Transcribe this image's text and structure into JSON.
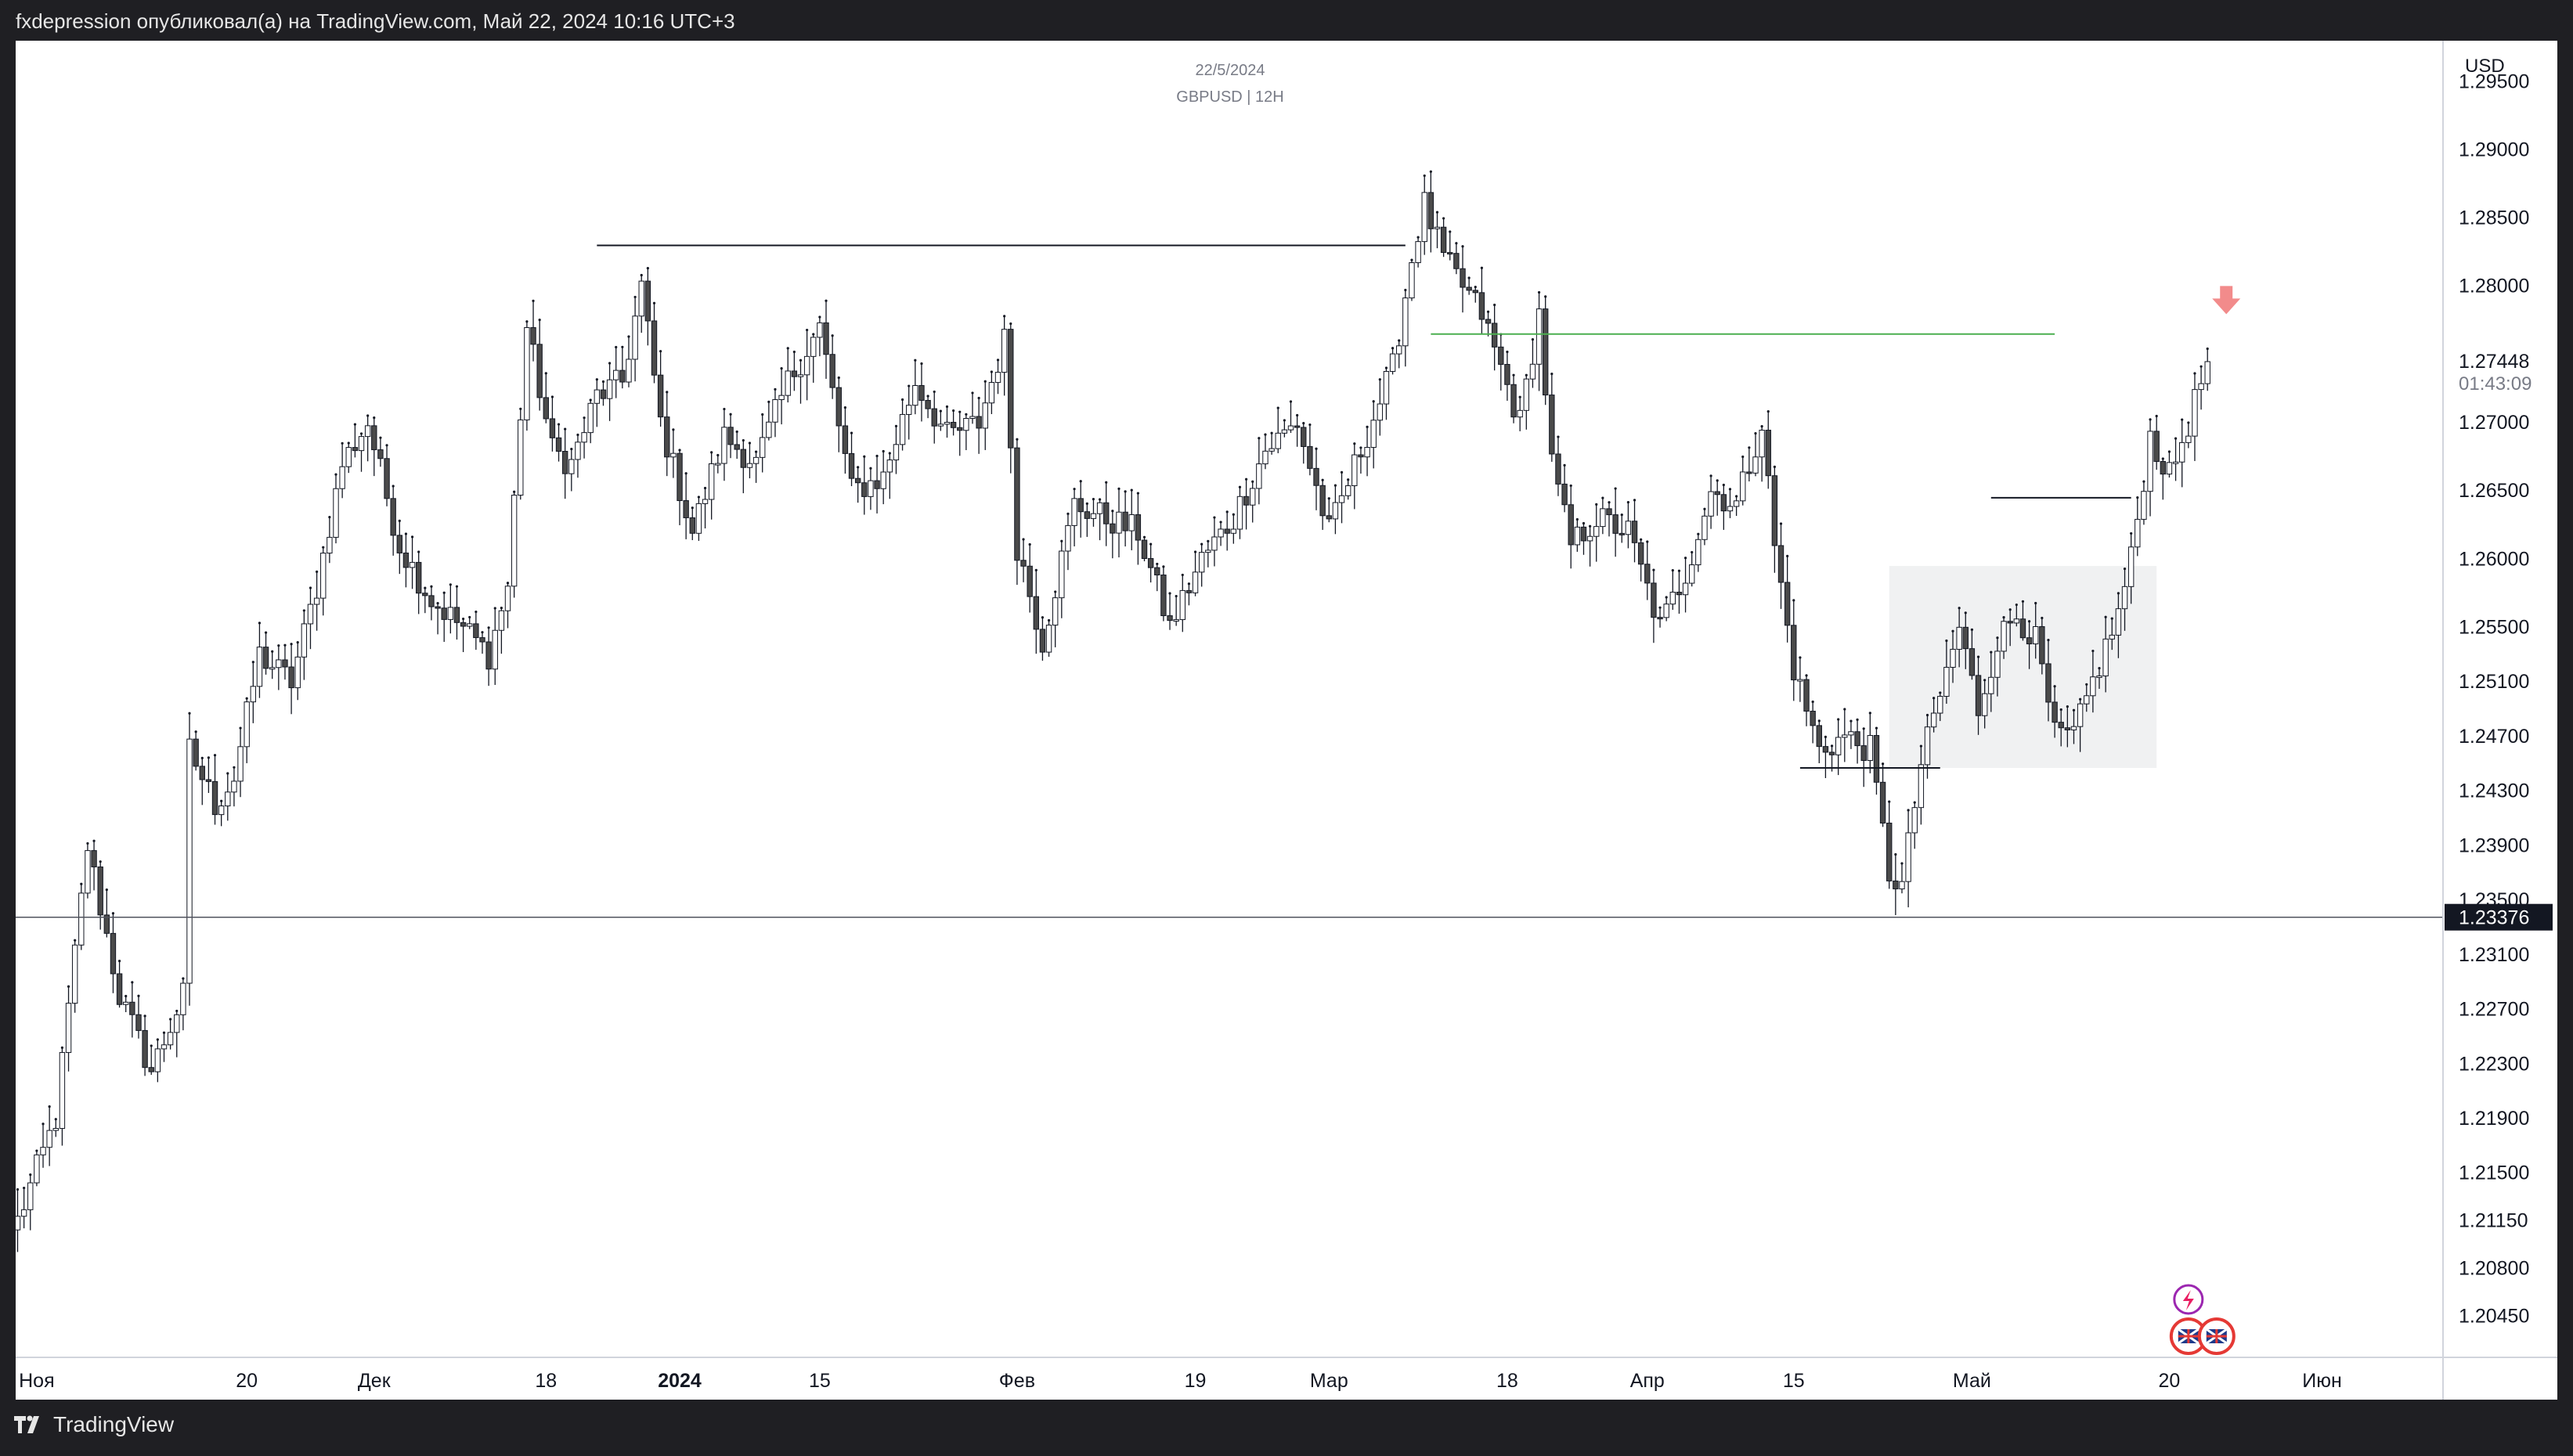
{
  "header": {
    "title": "fxdepression опубликовал(а) на TradingView.com, Май 22, 2024 10:16 UTC+3"
  },
  "footer": {
    "brand": "TradingView",
    "logo_icon": "tradingview-logo-icon"
  },
  "chart_data": {
    "type": "candlestick",
    "symbol": "GBPUSD | 12H",
    "date_label": "22/5/2024",
    "currency": "USD",
    "current_price": "1.27448",
    "countdown": "01:43:09",
    "crosshair_price": "1.23376",
    "ylim": [
      1.2015,
      1.298
    ],
    "y_ticks": [
      "1.29500",
      "1.29000",
      "1.28500",
      "1.28000",
      "1.27000",
      "1.26500",
      "1.26000",
      "1.25500",
      "1.25100",
      "1.24700",
      "1.24300",
      "1.23900",
      "1.23500",
      "1.23100",
      "1.22700",
      "1.22300",
      "1.21900",
      "1.21500",
      "1.21150",
      "1.20800",
      "1.20450"
    ],
    "x_ticks": [
      {
        "label": "Ноя",
        "i": 3,
        "bold": false
      },
      {
        "label": "20",
        "i": 36,
        "bold": false
      },
      {
        "label": "Дек",
        "i": 56,
        "bold": false
      },
      {
        "label": "18",
        "i": 83,
        "bold": false
      },
      {
        "label": "2024",
        "i": 104,
        "bold": true
      },
      {
        "label": "15",
        "i": 126,
        "bold": false
      },
      {
        "label": "Фев",
        "i": 157,
        "bold": false
      },
      {
        "label": "19",
        "i": 185,
        "bold": false
      },
      {
        "label": "Мар",
        "i": 206,
        "bold": false
      },
      {
        "label": "18",
        "i": 234,
        "bold": false
      },
      {
        "label": "Апр",
        "i": 256,
        "bold": false
      },
      {
        "label": "15",
        "i": 279,
        "bold": false
      },
      {
        "label": "Май",
        "i": 307,
        "bold": false
      },
      {
        "label": "20",
        "i": 338,
        "bold": false
      },
      {
        "label": "Июн",
        "i": 362,
        "bold": false
      }
    ],
    "anchors": [
      [
        0,
        1.2115
      ],
      [
        6,
        1.219
      ],
      [
        11,
        1.239
      ],
      [
        16,
        1.228
      ],
      [
        21,
        1.2225
      ],
      [
        26,
        1.228
      ],
      [
        27,
        1.246
      ],
      [
        31,
        1.242
      ],
      [
        34,
        1.244
      ],
      [
        38,
        1.253
      ],
      [
        43,
        1.251
      ],
      [
        47,
        1.258
      ],
      [
        51,
        1.267
      ],
      [
        55,
        1.27
      ],
      [
        60,
        1.261
      ],
      [
        65,
        1.257
      ],
      [
        70,
        1.255
      ],
      [
        74,
        1.253
      ],
      [
        77,
        1.258
      ],
      [
        80,
        1.277
      ],
      [
        84,
        1.268
      ],
      [
        87,
        1.267
      ],
      [
        91,
        1.272
      ],
      [
        95,
        1.273
      ],
      [
        98,
        1.28
      ],
      [
        101,
        1.27
      ],
      [
        106,
        1.262
      ],
      [
        111,
        1.269
      ],
      [
        116,
        1.267
      ],
      [
        121,
        1.273
      ],
      [
        126,
        1.277
      ],
      [
        131,
        1.265
      ],
      [
        136,
        1.266
      ],
      [
        141,
        1.273
      ],
      [
        146,
        1.269
      ],
      [
        151,
        1.27
      ],
      [
        155,
        1.276
      ],
      [
        157,
        1.261
      ],
      [
        161,
        1.254
      ],
      [
        166,
        1.264
      ],
      [
        171,
        1.263
      ],
      [
        176,
        1.262
      ],
      [
        181,
        1.255
      ],
      [
        186,
        1.26
      ],
      [
        191,
        1.263
      ],
      [
        196,
        1.268
      ],
      [
        201,
        1.27
      ],
      [
        206,
        1.262
      ],
      [
        211,
        1.268
      ],
      [
        216,
        1.274
      ],
      [
        219,
        1.282
      ],
      [
        221,
        1.286
      ],
      [
        224,
        1.282
      ],
      [
        227,
        1.28
      ],
      [
        230,
        1.278
      ],
      [
        233,
        1.274
      ],
      [
        236,
        1.27
      ],
      [
        239,
        1.278
      ],
      [
        241,
        1.267
      ],
      [
        244,
        1.261
      ],
      [
        248,
        1.263
      ],
      [
        253,
        1.262
      ],
      [
        258,
        1.255
      ],
      [
        262,
        1.259
      ],
      [
        266,
        1.265
      ],
      [
        270,
        1.264
      ],
      [
        274,
        1.27
      ],
      [
        276,
        1.261
      ],
      [
        279,
        1.252
      ],
      [
        283,
        1.246
      ],
      [
        287,
        1.247
      ],
      [
        291,
        1.246
      ],
      [
        294,
        1.237
      ],
      [
        296,
        1.236
      ],
      [
        299,
        1.245
      ],
      [
        302,
        1.25
      ],
      [
        305,
        1.255
      ],
      [
        308,
        1.249
      ],
      [
        311,
        1.254
      ],
      [
        314,
        1.256
      ],
      [
        317,
        1.254
      ],
      [
        320,
        1.247
      ],
      [
        323,
        1.247
      ],
      [
        326,
        1.251
      ],
      [
        330,
        1.256
      ],
      [
        332,
        1.26
      ],
      [
        335,
        1.269
      ],
      [
        338,
        1.266
      ],
      [
        341,
        1.27
      ],
      [
        344,
        1.2745
      ]
    ],
    "annotations": [
      {
        "kind": "hline",
        "x1": 91,
        "x2": 218,
        "y": 1.283,
        "color": "#131722"
      },
      {
        "kind": "hline",
        "x1": 222,
        "x2": 320,
        "y": 1.2765,
        "color": "#4caf50"
      },
      {
        "kind": "hline",
        "x1": 310,
        "x2": 332,
        "y": 1.2645,
        "color": "#131722"
      },
      {
        "kind": "hline",
        "x1": 280,
        "x2": 302,
        "y": 1.2447,
        "color": "#131722"
      },
      {
        "kind": "zone",
        "x1": 294,
        "x2": 336,
        "y1": 1.2595,
        "y2": 1.2447,
        "color": "#f0f1f2"
      }
    ]
  }
}
